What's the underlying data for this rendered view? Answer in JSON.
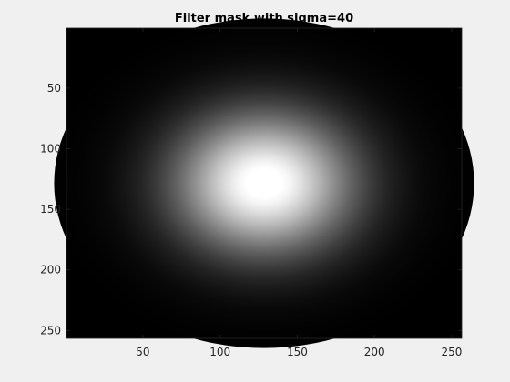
{
  "chart_data": {
    "type": "heatmap",
    "title": "Filter mask with sigma=40",
    "xlabel": "",
    "ylabel": "",
    "colormap": "gray",
    "image_size": [
      256,
      256
    ],
    "gaussian": {
      "center_x": 128.5,
      "center_y": 128.5,
      "sigma": 40
    },
    "xlim": [
      0.5,
      256.5
    ],
    "ylim": [
      0.5,
      256.5
    ],
    "y_reversed": true,
    "x_ticks": [
      50,
      100,
      150,
      200,
      250
    ],
    "x_tick_labels": [
      "50",
      "100",
      "150",
      "200",
      "250"
    ],
    "y_ticks": [
      50,
      100,
      150,
      200,
      250
    ],
    "y_tick_labels": [
      "50",
      "100",
      "150",
      "200",
      "250"
    ],
    "grid": false
  },
  "colors": {
    "figure_background": "#f0f0f0",
    "axes_edge": "#262626",
    "text": "#262626"
  }
}
